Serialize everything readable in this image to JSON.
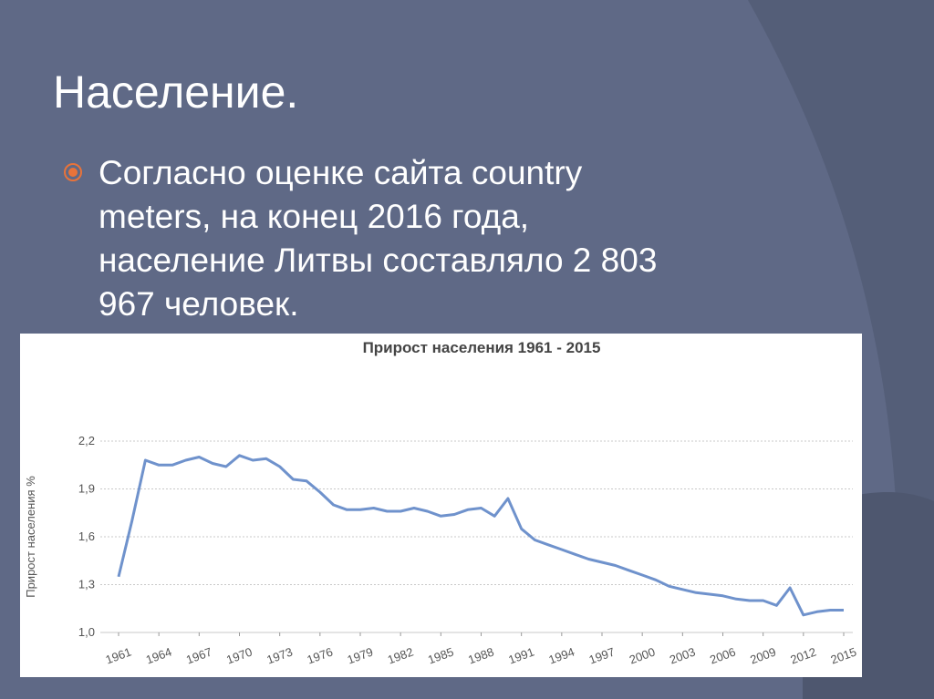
{
  "header": {
    "title": "Население."
  },
  "bullet": {
    "lines": [
      "Согласно оценке сайта country",
      "meters, на конец 2016 года,",
      "население Литвы составляло 2 803",
      "967 человек."
    ]
  },
  "chart_data": {
    "type": "line",
    "title": "Прирост населения 1961 - 2015",
    "y_label": "Прирост населения %",
    "x": [
      1961,
      1962,
      1963,
      1964,
      1965,
      1966,
      1967,
      1968,
      1969,
      1970,
      1971,
      1972,
      1973,
      1974,
      1975,
      1976,
      1977,
      1978,
      1979,
      1980,
      1981,
      1982,
      1983,
      1984,
      1985,
      1986,
      1987,
      1988,
      1989,
      1990,
      1991,
      1992,
      1993,
      1994,
      1995,
      1996,
      1997,
      1998,
      1999,
      2000,
      2001,
      2002,
      2003,
      2004,
      2005,
      2006,
      2007,
      2008,
      2009,
      2010,
      2011,
      2012,
      2013,
      2014,
      2015
    ],
    "values": [
      1.35,
      1.7,
      2.08,
      2.05,
      2.05,
      2.08,
      2.1,
      2.06,
      2.04,
      2.11,
      2.08,
      2.09,
      2.04,
      1.96,
      1.95,
      1.88,
      1.8,
      1.77,
      1.77,
      1.78,
      1.76,
      1.76,
      1.78,
      1.76,
      1.73,
      1.74,
      1.77,
      1.78,
      1.73,
      1.84,
      1.65,
      1.58,
      1.55,
      1.52,
      1.49,
      1.46,
      1.44,
      1.42,
      1.39,
      1.36,
      1.33,
      1.29,
      1.27,
      1.25,
      1.24,
      1.23,
      1.21,
      1.2,
      1.2,
      1.17,
      1.28,
      1.11,
      1.13,
      1.14,
      1.14
    ],
    "color": "#6f92cc",
    "xlim": [
      1961,
      2015
    ],
    "xticks": [
      1961,
      1964,
      1967,
      1970,
      1973,
      1976,
      1979,
      1982,
      1985,
      1988,
      1991,
      1994,
      1997,
      2000,
      2003,
      2006,
      2009,
      2012,
      2015
    ],
    "ylim": [
      1.0,
      2.2
    ],
    "yticks": [
      {
        "value": 1.0,
        "label": "1,0"
      },
      {
        "value": 1.3,
        "label": "1,3"
      },
      {
        "value": 1.6,
        "label": "1,6"
      },
      {
        "value": 1.9,
        "label": "1,9"
      },
      {
        "value": 2.2,
        "label": "2,2"
      }
    ],
    "grid": true
  }
}
